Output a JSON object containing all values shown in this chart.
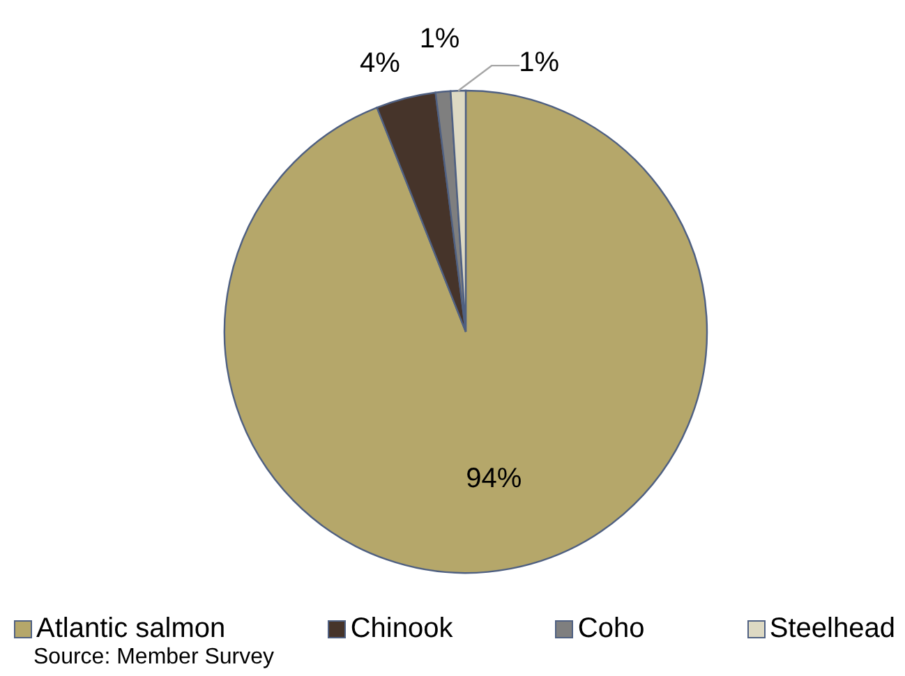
{
  "chart_data": {
    "type": "pie",
    "categories": [
      "Atlantic salmon",
      "Chinook",
      "Coho",
      "Steelhead"
    ],
    "values": [
      94,
      4,
      1,
      1
    ],
    "colors": [
      "#b5a76a",
      "#46342a",
      "#7f7f7f",
      "#ddd9c3"
    ],
    "value_labels": [
      "94%",
      "4%",
      "1%",
      "1%"
    ],
    "legend": "bottom",
    "annotations": [
      "Source: Member Survey"
    ]
  }
}
